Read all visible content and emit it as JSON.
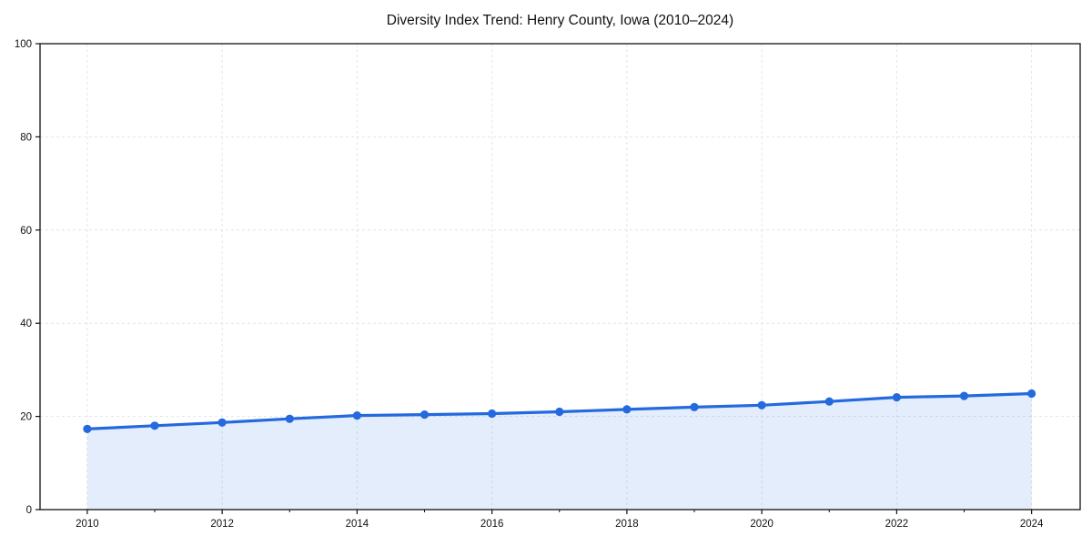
{
  "chart_data": {
    "type": "line",
    "title": "Diversity Index Trend: Henry County, Iowa (2010–2024)",
    "xlabel": "",
    "ylabel": "",
    "x": [
      2010,
      2011,
      2012,
      2013,
      2014,
      2015,
      2016,
      2017,
      2018,
      2019,
      2020,
      2021,
      2022,
      2023,
      2024
    ],
    "series": [
      {
        "name": "Diversity Index",
        "values": [
          17.3,
          18.0,
          18.7,
          19.5,
          20.2,
          20.4,
          20.6,
          21.0,
          21.5,
          22.0,
          22.4,
          23.2,
          24.1,
          24.4,
          24.9
        ]
      }
    ],
    "xlim": [
      2009.3,
      2024.72
    ],
    "ylim": [
      0,
      100
    ],
    "yticks": [
      0,
      20,
      40,
      60,
      80,
      100
    ],
    "xticks_major": [
      2010,
      2012,
      2014,
      2016,
      2018,
      2020,
      2022,
      2024
    ],
    "xticks_minor": [
      2011,
      2013,
      2015,
      2017,
      2019,
      2021,
      2023
    ],
    "grid": "dashed",
    "legend": "none",
    "area_fill": true,
    "style": {
      "line_color": "#2469de",
      "marker_color": "#2469de",
      "area_fill_color": "#2469de",
      "area_fill_opacity": 0.12,
      "grid_color": "#e4e4e4",
      "spine_color": "#111111",
      "tick_color": "#111111",
      "tick_label_color": "#111111",
      "title_color": "#111111",
      "background": "#ffffff"
    }
  }
}
